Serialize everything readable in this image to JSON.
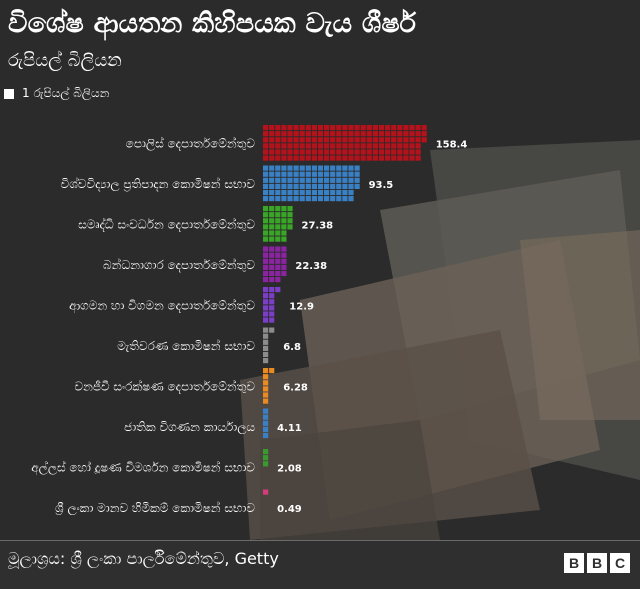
{
  "header": {
    "title": "විශේෂ ආයතන කිහිපයක වැය ශීර්ෂ",
    "subtitle": "රුපියල් බිලියන"
  },
  "legend": {
    "label": "1 රුපියල් බිලියන"
  },
  "footer": {
    "source": "මූලාශ්‍රය: ශ්‍රී ලංකා පාර්ලිමේන්තුව, Getty",
    "logo_letters": [
      "B",
      "B",
      "C"
    ]
  },
  "chart_data": {
    "type": "bar",
    "orientation": "horizontal",
    "unit": "1 රුපියල් බිලියන",
    "categories": [
      "පොලිස් දෙපාර්තමේන්තුව",
      "විශ්වවිද්‍යාල ප්‍රතිපාදන කොමිෂන් සභාව",
      "සමෘද්ධි සංවර්ධන දෙපාර්තමේන්තුව",
      "බන්ධනාගාර දෙපාර්තමේන්තුව",
      "ආගමන හා විගමන දෙපාර්තමේන්තුව",
      "මැතිවරණ කොමිෂන් සභාව",
      "වනජීවී සංරක්ෂණ දෙපාර්තමේන්තුව",
      "ජාතික විගණන කාර්යාලය",
      "අල්ලස් හෝ දූෂණ විමර්ශන කොමිෂන් සභාව",
      "ශ්‍රී ලංකා මානව හිමිකම් කොමිෂන් සභාව"
    ],
    "values": [
      158.4,
      93.5,
      27.38,
      22.38,
      12.9,
      6.8,
      6.28,
      4.11,
      2.08,
      0.49
    ],
    "value_labels": [
      "158.4",
      "93.5",
      "27.38",
      "22.38",
      "12.9",
      "6.8",
      "6.28",
      "4.11",
      "2.08",
      "0.49"
    ],
    "colors": [
      "#b5121b",
      "#3a80c4",
      "#3aa628",
      "#8a24a0",
      "#7a3fc4",
      "#8c8c8c",
      "#ea8a22",
      "#3a80c4",
      "#3a9a30",
      "#d63c7a"
    ],
    "grid": false
  }
}
